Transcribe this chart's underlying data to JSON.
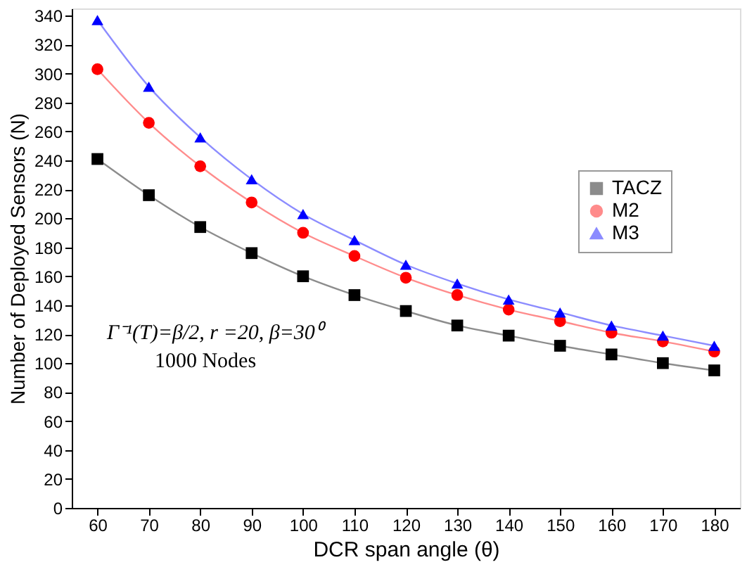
{
  "chart_data": {
    "type": "line",
    "xlabel": "DCR span angle (θ)",
    "ylabel": "Number of Deployed Sensors (N)",
    "x": [
      60,
      70,
      80,
      90,
      100,
      110,
      120,
      130,
      140,
      150,
      160,
      170,
      180
    ],
    "series": [
      {
        "name": "TACZ",
        "color": "#000000",
        "marker": "square",
        "values": [
          241,
          216,
          194,
          176,
          160,
          147,
          136,
          126,
          119,
          112,
          106,
          100,
          95
        ]
      },
      {
        "name": "M2",
        "color": "#ff0000",
        "marker": "circle",
        "values": [
          303,
          266,
          236,
          211,
          190,
          174,
          159,
          147,
          137,
          129,
          121,
          115,
          108
        ]
      },
      {
        "name": "M3",
        "color": "#0000ff",
        "marker": "triangle",
        "values": [
          337,
          291,
          256,
          227,
          203,
          185,
          168,
          155,
          144,
          135,
          126,
          119,
          112
        ]
      }
    ],
    "xlim": [
      55,
      185
    ],
    "xticks": [
      60,
      70,
      80,
      90,
      100,
      110,
      120,
      130,
      140,
      150,
      160,
      170,
      180
    ],
    "ylim": [
      0,
      345
    ],
    "yticks": [
      0,
      20,
      40,
      60,
      80,
      100,
      120,
      140,
      160,
      180,
      200,
      220,
      240,
      260,
      280,
      300,
      320,
      340
    ],
    "annotations": [
      "Γ⁻¹(T)=β/2, r =20, β=30⁰",
      "1000 Nodes"
    ],
    "legend": "right",
    "grid": false,
    "line_style": "solid"
  }
}
